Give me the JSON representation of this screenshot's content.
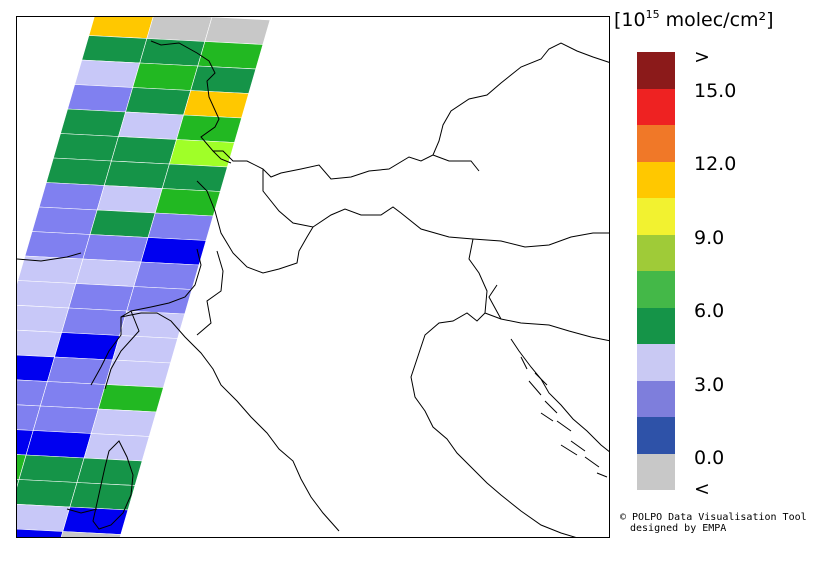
{
  "legend": {
    "unit_prefix": "[10",
    "unit_exponent": "15",
    "unit_suffix": " molec/cm²]",
    "ticks": [
      ">",
      "15.0",
      "12.0",
      "9.0",
      "6.0",
      "3.0",
      "0.0",
      "<"
    ],
    "colors": [
      "#8B1A1A",
      "#EE2222",
      "#F07828",
      "#FFC800",
      "#F2F230",
      "#9FCB38",
      "#44B848",
      "#159448",
      "#C9C9F3",
      "#7E7EDC",
      "#2E52A8",
      "#C8C8C8"
    ]
  },
  "credit": {
    "line1": "© POLPO Data Visualisation Tool",
    "line2": "designed by EMPA"
  },
  "swath_rows": [
    [
      "#FFC800",
      "#C8C8C8",
      "#C8C8C8"
    ],
    [
      "#159448",
      "#159448",
      "#22B822"
    ],
    [
      "#C8C8F8",
      "#22B822",
      "#159448"
    ],
    [
      "#8080F0",
      "#159448",
      "#FFC800"
    ],
    [
      "#159448",
      "#C8C8F8",
      "#22B822"
    ],
    [
      "#159448",
      "#159448",
      "#A0FF28"
    ],
    [
      "#159448",
      "#159448",
      "#159448"
    ],
    [
      "#8080F0",
      "#C8C8F8",
      "#22B822"
    ],
    [
      "#8080F0",
      "#159448",
      "#8080F0"
    ],
    [
      "#8080F0",
      "#8080F0",
      "#0000F0"
    ],
    [
      "#C8C8F8",
      "#C8C8F8",
      "#8080F0"
    ],
    [
      "#C8C8F8",
      "#8080F0",
      "#8080F0"
    ],
    [
      "#C8C8F8",
      "#8080F0",
      "#C8C8F8"
    ],
    [
      "#C8C8F8",
      "#0000F0",
      "#C8C8F8"
    ],
    [
      "#0000F0",
      "#8080F0",
      "#C8C8F8"
    ],
    [
      "#8080F0",
      "#8080F0",
      "#22B822"
    ],
    [
      "#8080F0",
      "#8080F0",
      "#C8C8F8"
    ],
    [
      "#0000F0",
      "#0000F0",
      "#C8C8F8"
    ],
    [
      "#22B822",
      "#159448",
      "#159448"
    ],
    [
      "#159448",
      "#159448",
      "#159448"
    ],
    [
      "#FFC800",
      "#C8C8F8",
      "#0000F0"
    ],
    [
      "#0000F0",
      "#0000F0",
      "#C8C8C8"
    ]
  ]
}
